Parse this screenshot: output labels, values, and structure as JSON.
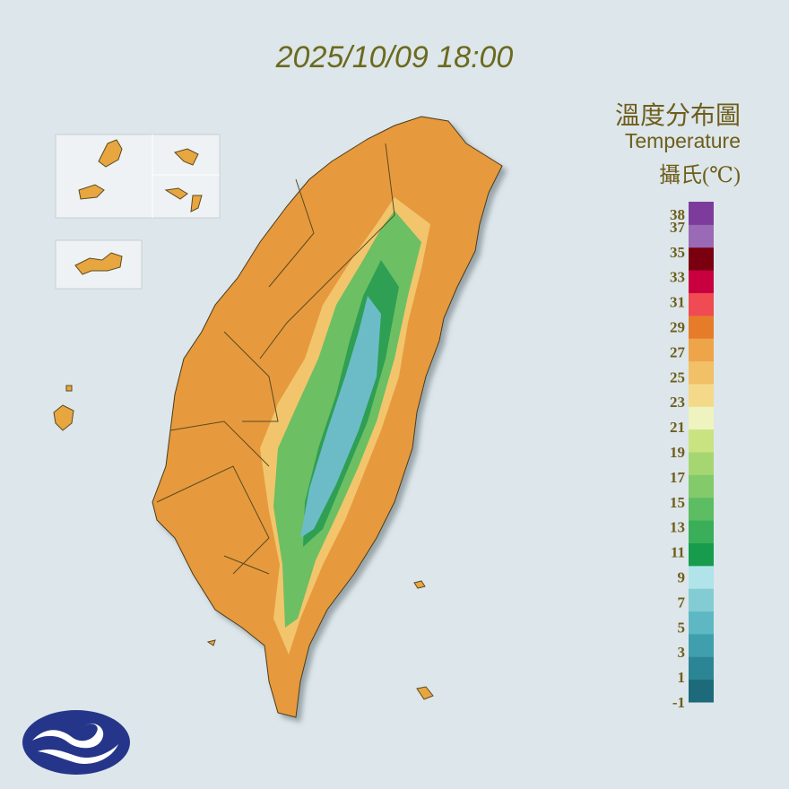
{
  "timestamp": "2025/10/09 18:00",
  "legend": {
    "title": "溫度分布圖",
    "subtitle": "Temperature",
    "unit": "攝氏(℃)",
    "ticks": [
      38,
      37,
      35,
      33,
      31,
      29,
      27,
      25,
      23,
      21,
      19,
      17,
      15,
      13,
      11,
      9,
      7,
      5,
      3,
      1,
      -1
    ],
    "colors": [
      "#1d6a7a",
      "#2b8595",
      "#3f9fad",
      "#5db8c3",
      "#83ccd4",
      "#b0e4ea",
      "#179c4d",
      "#3aae59",
      "#5cbd63",
      "#82ca6a",
      "#a6d672",
      "#c8e37f",
      "#eef3c0",
      "#f4d98a",
      "#f2c067",
      "#eea54a",
      "#e67c2a",
      "#f04a52",
      "#c80040",
      "#7a0010",
      "#9a6ab6",
      "#7d3c9c"
    ]
  }
}
